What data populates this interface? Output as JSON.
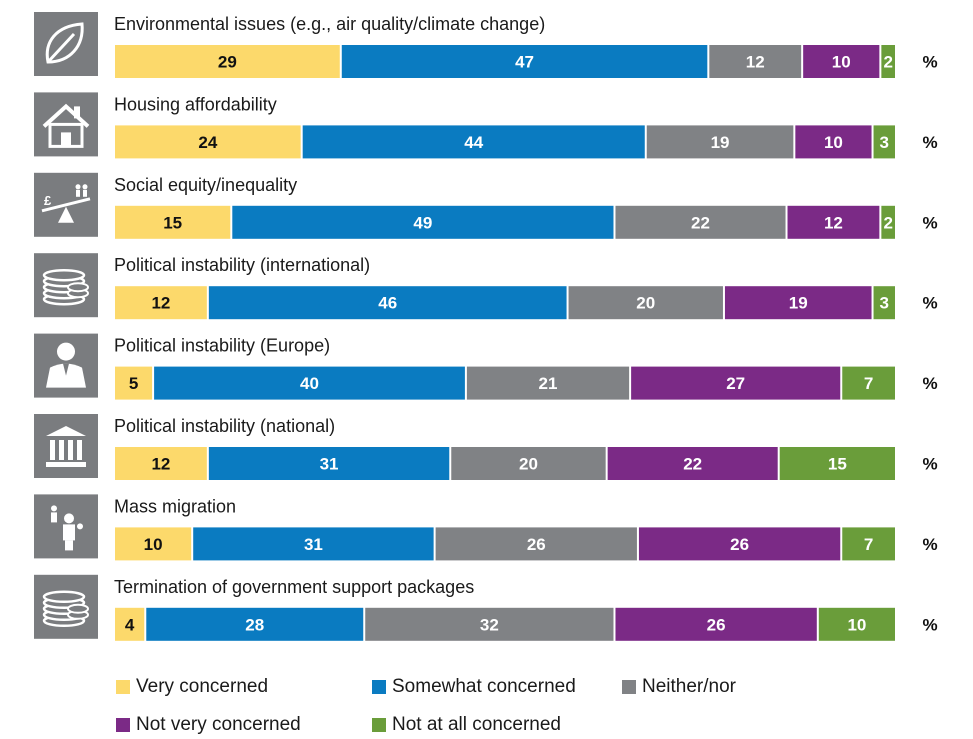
{
  "chart_data": {
    "type": "bar",
    "orientation": "horizontal",
    "stacked": true,
    "unit": "%",
    "categories": [
      "Environmental issues (e.g., air quality/climate change)",
      "Housing affordability",
      "Social equity/inequality",
      "Political instability (international)",
      "Political instability (Europe)",
      "Political instability (national)",
      "Mass migration",
      "Termination of government support packages"
    ],
    "icons": [
      "leaf-icon",
      "house-icon",
      "scales-icon",
      "coins-icon",
      "person-icon",
      "institution-icon",
      "migration-icon",
      "coins-icon"
    ],
    "series": [
      {
        "name": "Very concerned",
        "color": "#fcd96b",
        "text_color": "#111111",
        "values": [
          29,
          24,
          15,
          12,
          5,
          12,
          10,
          4
        ]
      },
      {
        "name": "Somewhat concerned",
        "color": "#0a7bc1",
        "text_color": "#ffffff",
        "values": [
          47,
          44,
          49,
          46,
          40,
          31,
          31,
          28
        ]
      },
      {
        "name": "Neither/nor",
        "color": "#808285",
        "text_color": "#ffffff",
        "values": [
          12,
          19,
          22,
          20,
          21,
          20,
          26,
          32
        ]
      },
      {
        "name": "Not very concerned",
        "color": "#7b2a86",
        "text_color": "#ffffff",
        "values": [
          10,
          10,
          12,
          19,
          27,
          22,
          26,
          26
        ]
      },
      {
        "name": "Not at all concerned",
        "color": "#6a9d3a",
        "text_color": "#ffffff",
        "values": [
          2,
          3,
          2,
          3,
          7,
          15,
          7,
          10
        ]
      }
    ],
    "pct_symbol": "%",
    "legend": {
      "position": "bottom"
    },
    "icon_bg_color": "#7a7c7f"
  }
}
